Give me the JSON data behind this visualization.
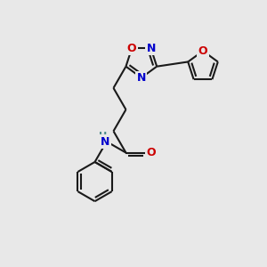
{
  "background_color": "#e8e8e8",
  "bond_color": "#1a1a1a",
  "N_color": "#0000cc",
  "O_color": "#cc0000",
  "H_color": "#4a8a8a",
  "line_width": 1.5,
  "figsize": [
    3.0,
    3.0
  ],
  "dpi": 100,
  "xlim": [
    0,
    10
  ],
  "ylim": [
    0,
    10
  ]
}
